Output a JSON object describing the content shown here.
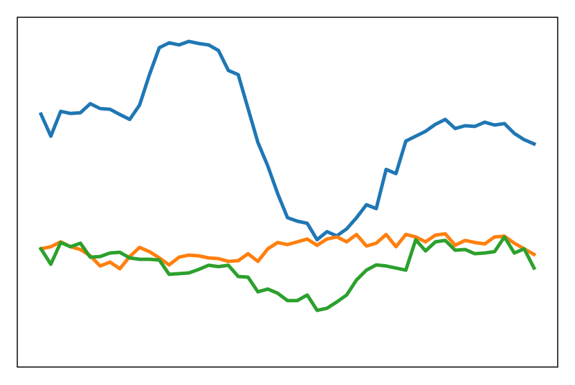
{
  "chart_data": {
    "type": "line",
    "x": [
      0,
      1,
      2,
      3,
      4,
      5,
      6,
      7,
      8,
      9,
      10,
      11,
      12,
      13,
      14,
      15,
      16,
      17,
      18,
      19,
      20,
      21,
      22,
      23,
      24,
      25,
      26,
      27,
      28,
      29,
      30,
      31,
      32,
      33,
      34,
      35,
      36,
      37,
      38,
      39,
      40,
      41,
      42,
      43,
      44,
      45,
      46,
      47,
      48,
      49,
      50
    ],
    "xlim": [
      -2.4,
      52.4
    ],
    "ylim": [
      0,
      100
    ],
    "series": [
      {
        "color": "#1f77b4",
        "values": [
          72.3,
          66.0,
          73.1,
          72.5,
          72.7,
          75.3,
          73.9,
          73.7,
          72.2,
          70.8,
          74.9,
          83.6,
          91.3,
          92.7,
          92.1,
          93.1,
          92.5,
          92.1,
          90.5,
          84.8,
          83.6,
          73.9,
          64.2,
          57.5,
          49.6,
          42.7,
          41.7,
          41.1,
          36.4,
          38.7,
          37.5,
          39.5,
          42.7,
          46.4,
          45.3,
          56.5,
          55.3,
          64.6,
          66.0,
          67.4,
          69.4,
          70.8,
          68.2,
          69.0,
          68.8,
          70.0,
          69.2,
          69.6,
          66.8,
          65.0,
          63.8
        ]
      },
      {
        "color": "#ff7f0e",
        "values": [
          33.8,
          34.4,
          35.8,
          34.4,
          33.6,
          31.8,
          28.9,
          30.0,
          28.1,
          31.6,
          34.2,
          33.0,
          31.2,
          29.2,
          31.4,
          32.0,
          31.8,
          31.2,
          31.0,
          30.2,
          30.4,
          32.4,
          30.2,
          33.8,
          35.6,
          35.0,
          35.8,
          36.6,
          34.8,
          36.6,
          37.2,
          35.8,
          37.9,
          34.6,
          35.4,
          37.9,
          34.4,
          37.9,
          37.2,
          35.8,
          37.7,
          38.1,
          34.8,
          36.2,
          35.6,
          35.2,
          37.2,
          37.4,
          35.4,
          33.8,
          32.2
        ]
      },
      {
        "color": "#2ca02c",
        "values": [
          33.8,
          29.4,
          35.6,
          34.4,
          35.4,
          31.4,
          31.6,
          32.6,
          32.8,
          31.2,
          30.8,
          30.8,
          30.6,
          26.5,
          26.7,
          26.9,
          27.9,
          29.1,
          28.7,
          29.1,
          25.9,
          25.7,
          21.5,
          22.3,
          21.1,
          19.0,
          19.0,
          20.6,
          16.2,
          16.8,
          18.6,
          20.6,
          24.9,
          27.7,
          29.2,
          28.9,
          28.3,
          27.7,
          36.4,
          33.2,
          35.8,
          36.2,
          33.4,
          33.6,
          32.4,
          32.6,
          33.0,
          37.2,
          32.6,
          33.8,
          28.3
        ]
      }
    ]
  }
}
